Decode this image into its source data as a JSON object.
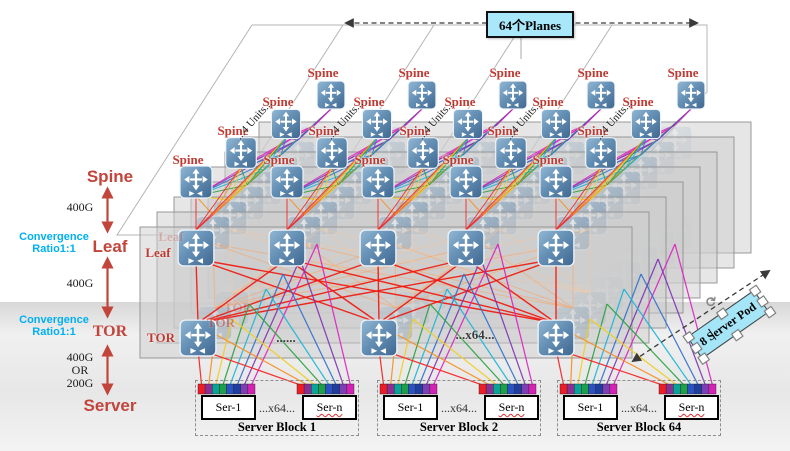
{
  "legend": {
    "spine": "Spine",
    "speed_spine_leaf": "400G",
    "convergence1_line1": "Convergence",
    "convergence1_line2": "Ratio1:1",
    "leaf": "Leaf",
    "speed_leaf_tor": "400G",
    "convergence2_line1": "Convergence",
    "convergence2_line2": "Ratio1:1",
    "tor": "TOR",
    "speed_tor_server_1": "400G",
    "speed_tor_server_2": "OR",
    "speed_tor_server_3": "200G",
    "server": "Server"
  },
  "diagram": {
    "planes_count_label": "64个Planes",
    "units_label": "...4 Units...",
    "spine_label": "Spine",
    "leaf_label": "Leaf",
    "tor_label": "TOR",
    "tor_row_dots": "......",
    "tor_row_x64": "...x64...",
    "server_pod_label": "8 Server Pod",
    "blocks": [
      {
        "ser_first": "Ser-1",
        "x64": "...x64...",
        "ser_last": "Ser-n",
        "label": "Server Block 1"
      },
      {
        "ser_first": "Ser-1",
        "x64": "...x64...",
        "ser_last": "Ser-n",
        "label": "Server Block 2"
      },
      {
        "ser_first": "Ser-1",
        "x64": "...x64...",
        "ser_last": "Ser-n",
        "label": "Server Block 64"
      }
    ]
  },
  "colors": {
    "label_red": "#bf3a32",
    "legend_red": "#c2453c",
    "cyan_text": "#00b0f0",
    "callout_fill": "#a9e7fb",
    "switch_top": "#93b8d4",
    "switch_bottom": "#4a7097",
    "mesh_red": "#f01810",
    "mesh_faded1": "#f3a871",
    "mesh_faded2": "#f6c79d",
    "pod_fill": "#cdcdcd",
    "pod_border": "#909090",
    "plane_fill": "#ffffff",
    "plane_border": "#b5b5b5",
    "arrow_dash": "#3a3a3a",
    "rainbow": [
      "#f6211f",
      "#f78f20",
      "#f0cf1e",
      "#28a13d",
      "#18b7d8",
      "#2f6fce",
      "#7d31b4",
      "#dc22c0"
    ],
    "strip": [
      "#ee1c25",
      "#8c2f94",
      "#0aa39a",
      "#1ca04a",
      "#2b52c4",
      "#1f3e9e",
      "#7d3db4",
      "#d621b5"
    ]
  }
}
